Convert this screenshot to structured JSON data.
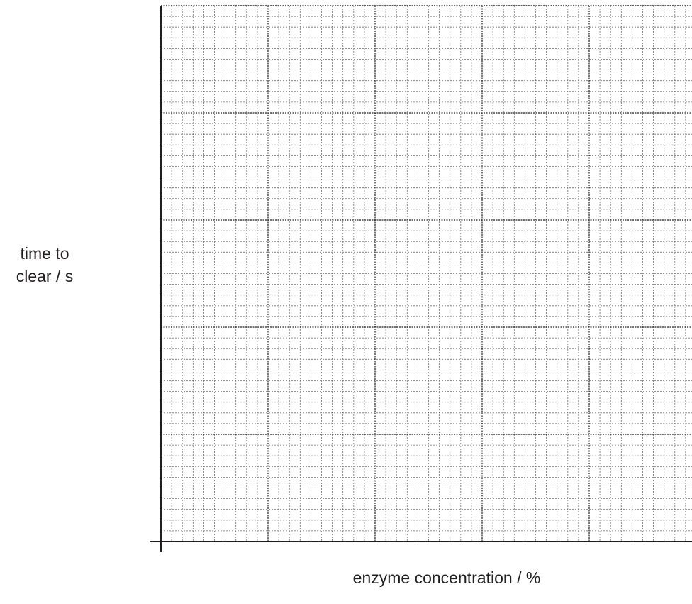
{
  "chart_data": {
    "type": "scatter",
    "title": "",
    "xlabel": "enzyme concentration / %",
    "ylabel_lines": [
      "time to",
      "clear / s"
    ],
    "series": [],
    "grid": true,
    "grid_style": "graph paper: major lines every 10 small squares, dotted minor lines",
    "major_divisions_x": 5,
    "major_divisions_y": 4,
    "minor_per_major": 10,
    "colors": {
      "axis": "#231f20",
      "major_grid": "#231f20",
      "minor_grid": "#6d6e71",
      "background": "#ffffff"
    }
  }
}
